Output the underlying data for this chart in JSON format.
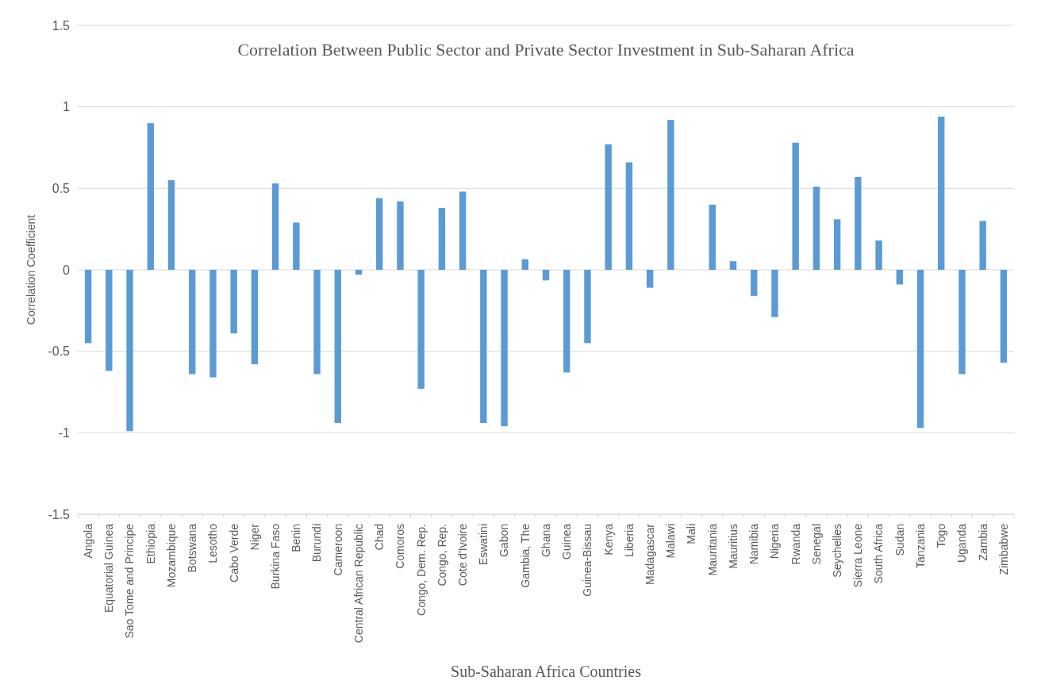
{
  "chart_data": {
    "type": "bar",
    "title": "Correlation Between Public Sector and Private Sector Investment in Sub-Saharan Africa",
    "xlabel": "Sub-Saharan Africa Countries",
    "ylabel": "Correlation Coefficient",
    "categories": [
      "Angola",
      "Equatorial Guinea",
      "Sao Tome and Principe",
      "Ethiopia",
      "Mozambique",
      "Botswana",
      "Lesotho",
      "Cabo Verde",
      "Niger",
      "Burkina Faso",
      "Benin",
      "Burundi",
      "Cameroon",
      "Central African Republic",
      "Chad",
      "Comoros",
      "Congo, Dem. Rep.",
      "Congo, Rep.",
      "Cote d'Ivoire",
      "Eswatini",
      "Gabon",
      "Gambia, The",
      "Ghana",
      "Guinea",
      "Guinea-Bissau",
      "Kenya",
      "Liberia",
      "Madagascar",
      "Malawi",
      "Mali",
      "Mauritania",
      "Mauritius",
      "Namibia",
      "Nigeria",
      "Rwanda",
      "Senegal",
      "Seychelles",
      "Sierra Leone",
      "South Africa",
      "Sudan",
      "Tanzania",
      "Togo",
      "Uganda",
      "Zambia",
      "Zimbabwe"
    ],
    "values": [
      -0.45,
      -0.62,
      -0.99,
      0.9,
      0.55,
      -0.64,
      -0.66,
      -0.39,
      -0.58,
      0.53,
      0.29,
      -0.64,
      -0.94,
      -0.03,
      0.44,
      0.42,
      -0.73,
      0.38,
      0.48,
      -0.94,
      -0.96,
      0.065,
      -0.065,
      -0.63,
      -0.45,
      0.77,
      0.66,
      -0.11,
      0.92,
      0,
      0.4,
      0.053,
      -0.16,
      -0.29,
      0.78,
      0.51,
      0.31,
      0.57,
      0.18,
      -0.09,
      -0.97,
      0.94,
      -0.64,
      0.3,
      -0.57
    ],
    "color": "#5b9bd5",
    "ylim": [
      -1.5,
      1.5
    ],
    "yticks": [
      -1.5,
      -1,
      -0.5,
      0,
      0.5,
      1,
      1.5
    ],
    "grid": "y"
  }
}
